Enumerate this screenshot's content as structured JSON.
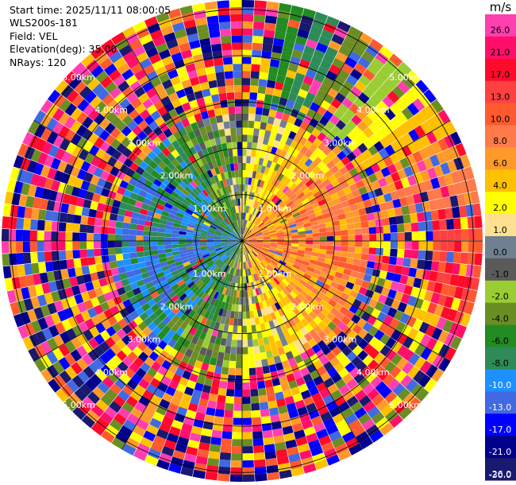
{
  "info": {
    "start_time": "Start time: 2025/11/11 08:00:05",
    "instrument": "WLS200s-181",
    "field": "Field: VEL",
    "elevation": "Elevation(deg): 35.00",
    "nrays": "NRays: 120"
  },
  "colorbar": {
    "unit": "m/s",
    "ticks": [
      "26.0",
      "21.0",
      "17.0",
      "13.0",
      "10.0",
      "8.0",
      "6.0",
      "4.0",
      "2.0",
      "1.0",
      "0.0",
      "-1.0",
      "-2.0",
      "-4.0",
      "-6.0",
      "-8.0",
      "-10.0",
      "-13.0",
      "-17.0",
      "-21.0",
      "-26.0",
      "-30.0"
    ],
    "colors": [
      "#ff3eb0",
      "#ff0f6a",
      "#ff0a2a",
      "#ff4040",
      "#ff5a2f",
      "#ff7a4a",
      "#ff9a2a",
      "#ffc000",
      "#ffff00",
      "#ffe090",
      "#708090",
      "#5a5a5a",
      "#9acd32",
      "#6b8e23",
      "#228b22",
      "#2e8b57",
      "#1e90ff",
      "#4169e1",
      "#0000ff",
      "#00008b",
      "#191970"
    ]
  },
  "chart_data": {
    "type": "heatmap",
    "title": "",
    "field": "VEL",
    "units": "m/s",
    "nrays": 120,
    "elevation_deg": 35.0,
    "range_ring_labels": [
      "1.00km",
      "2.00km",
      "3.00km",
      "4.00km",
      "5.00km"
    ],
    "range_rings_km": [
      1,
      2,
      3,
      4,
      5
    ],
    "max_range_km": 5.2,
    "color_levels": [
      -30,
      -26,
      -21,
      -17,
      -13,
      -10,
      -8,
      -6,
      -4,
      -2,
      -1,
      0,
      1,
      2,
      4,
      6,
      8,
      10,
      13,
      17,
      21,
      26
    ]
  }
}
